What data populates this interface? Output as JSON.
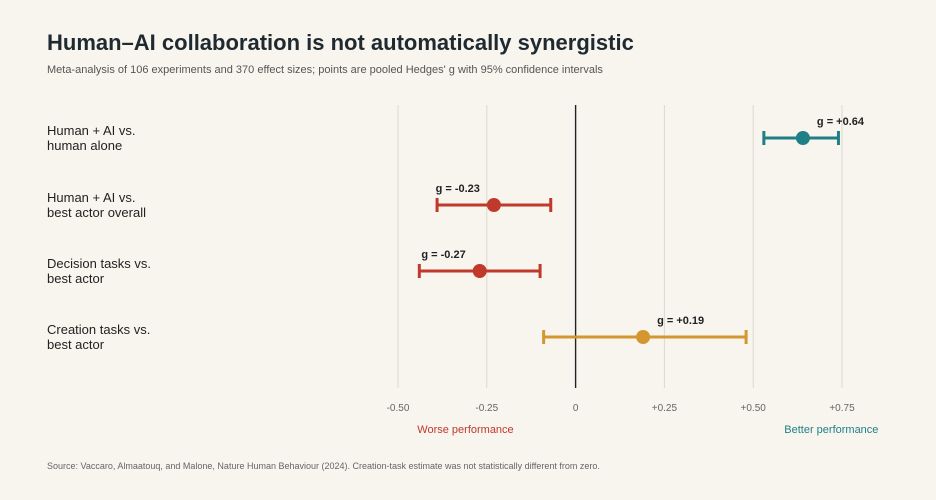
{
  "title": "Human–AI collaboration is not automatically synergistic",
  "subtitle": "Meta-analysis of 106 experiments and 370 effect sizes; points are pooled Hedges' g with 95% confidence intervals",
  "source": "Source: Vaccaro, Almaatouq, and Malone, Nature Human Behaviour (2024). Creation-task estimate was not statistically different from zero.",
  "chart_data": {
    "type": "scatter",
    "orientation": "horizontal",
    "categories": [
      [
        "Human + AI vs.",
        "human alone"
      ],
      [
        "Human + AI vs.",
        "best actor overall"
      ],
      [
        "Decision tasks vs.",
        "best actor"
      ],
      [
        "Creation tasks vs.",
        "best actor"
      ]
    ],
    "values": [
      0.64,
      -0.23,
      -0.27,
      0.19
    ],
    "ci_low": [
      0.53,
      -0.39,
      -0.44,
      -0.09
    ],
    "ci_high": [
      0.74,
      -0.07,
      -0.1,
      0.48
    ],
    "value_labels": [
      "g = +0.64",
      "g = -0.23",
      "g = -0.27",
      "g = +0.19"
    ],
    "colors": [
      "#1f7f86",
      "#c0392b",
      "#c0392b",
      "#d4972f"
    ],
    "xlim": [
      -0.5,
      0.75
    ],
    "xticks": [
      -0.5,
      -0.25,
      0,
      0.25,
      0.5,
      0.75
    ],
    "xtick_labels": [
      "-0.50",
      "-0.25",
      "0",
      "+0.25",
      "+0.50",
      "+0.75"
    ],
    "grid": true,
    "direction_labels": {
      "negative": {
        "text": "Worse performance",
        "color": "#c0392b"
      },
      "positive": {
        "text": "Better performance",
        "color": "#1f7f86"
      }
    }
  }
}
